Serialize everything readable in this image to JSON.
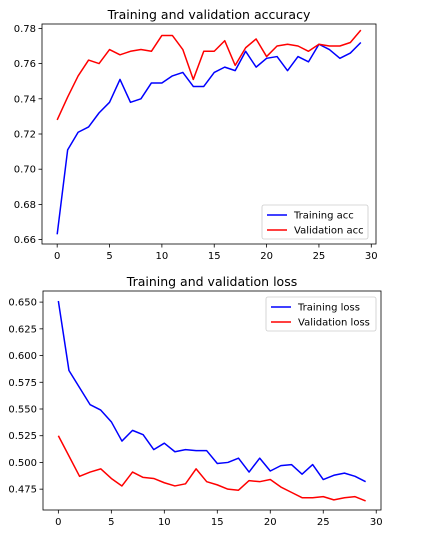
{
  "chart_data": [
    {
      "type": "line",
      "title": "Training and validation accuracy",
      "xlabel": "",
      "ylabel": "",
      "xlim": [
        -1.45,
        30.45
      ],
      "ylim": [
        0.6575,
        0.7825
      ],
      "xticks": [
        0,
        5,
        10,
        15,
        20,
        25,
        30
      ],
      "yticks": [
        0.66,
        0.68,
        0.7,
        0.72,
        0.74,
        0.76,
        0.78
      ],
      "ytick_labels": [
        "0.66",
        "0.68",
        "0.70",
        "0.72",
        "0.74",
        "0.76",
        "0.78"
      ],
      "grid": false,
      "legend_position": "lower-right",
      "x": [
        0,
        1,
        2,
        3,
        4,
        5,
        6,
        7,
        8,
        9,
        10,
        11,
        12,
        13,
        14,
        15,
        16,
        17,
        18,
        19,
        20,
        21,
        22,
        23,
        24,
        25,
        26,
        27,
        28,
        29
      ],
      "series": [
        {
          "name": "Training acc",
          "color": "#0000ff",
          "values": [
            0.663,
            0.711,
            0.721,
            0.724,
            0.732,
            0.738,
            0.751,
            0.738,
            0.74,
            0.749,
            0.749,
            0.753,
            0.755,
            0.747,
            0.747,
            0.755,
            0.758,
            0.756,
            0.767,
            0.758,
            0.763,
            0.764,
            0.756,
            0.764,
            0.761,
            0.771,
            0.768,
            0.763,
            0.766,
            0.772
          ]
        },
        {
          "name": "Validation acc",
          "color": "#ff0000",
          "values": [
            0.728,
            0.741,
            0.753,
            0.762,
            0.76,
            0.768,
            0.765,
            0.767,
            0.768,
            0.767,
            0.776,
            0.776,
            0.768,
            0.751,
            0.767,
            0.767,
            0.773,
            0.759,
            0.769,
            0.774,
            0.764,
            0.77,
            0.771,
            0.77,
            0.767,
            0.771,
            0.77,
            0.77,
            0.772,
            0.779
          ]
        }
      ]
    },
    {
      "type": "line",
      "title": "Training and validation loss",
      "xlabel": "",
      "ylabel": "",
      "xlim": [
        -1.45,
        30.45
      ],
      "ylim": [
        0.4555,
        0.6604
      ],
      "xticks": [
        0,
        5,
        10,
        15,
        20,
        25,
        30
      ],
      "yticks": [
        0.475,
        0.5,
        0.525,
        0.55,
        0.575,
        0.6,
        0.625,
        0.65
      ],
      "ytick_labels": [
        "0.475",
        "0.500",
        "0.525",
        "0.550",
        "0.575",
        "0.600",
        "0.625",
        "0.650"
      ],
      "grid": false,
      "legend_position": "upper-right",
      "x": [
        0,
        1,
        2,
        3,
        4,
        5,
        6,
        7,
        8,
        9,
        10,
        11,
        12,
        13,
        14,
        15,
        16,
        17,
        18,
        19,
        20,
        21,
        22,
        23,
        24,
        25,
        26,
        27,
        28,
        29
      ],
      "series": [
        {
          "name": "Training loss",
          "color": "#0000ff",
          "values": [
            0.651,
            0.586,
            0.57,
            0.554,
            0.549,
            0.538,
            0.52,
            0.53,
            0.526,
            0.512,
            0.518,
            0.51,
            0.512,
            0.511,
            0.511,
            0.499,
            0.5,
            0.504,
            0.491,
            0.504,
            0.492,
            0.497,
            0.498,
            0.489,
            0.498,
            0.484,
            0.488,
            0.49,
            0.487,
            0.482
          ]
        },
        {
          "name": "Validation loss",
          "color": "#ff0000",
          "values": [
            0.525,
            0.506,
            0.487,
            0.491,
            0.494,
            0.485,
            0.478,
            0.491,
            0.486,
            0.485,
            0.481,
            0.478,
            0.48,
            0.494,
            0.482,
            0.479,
            0.475,
            0.474,
            0.483,
            0.482,
            0.484,
            0.477,
            0.472,
            0.467,
            0.467,
            0.468,
            0.465,
            0.467,
            0.468,
            0.464
          ]
        }
      ]
    }
  ]
}
